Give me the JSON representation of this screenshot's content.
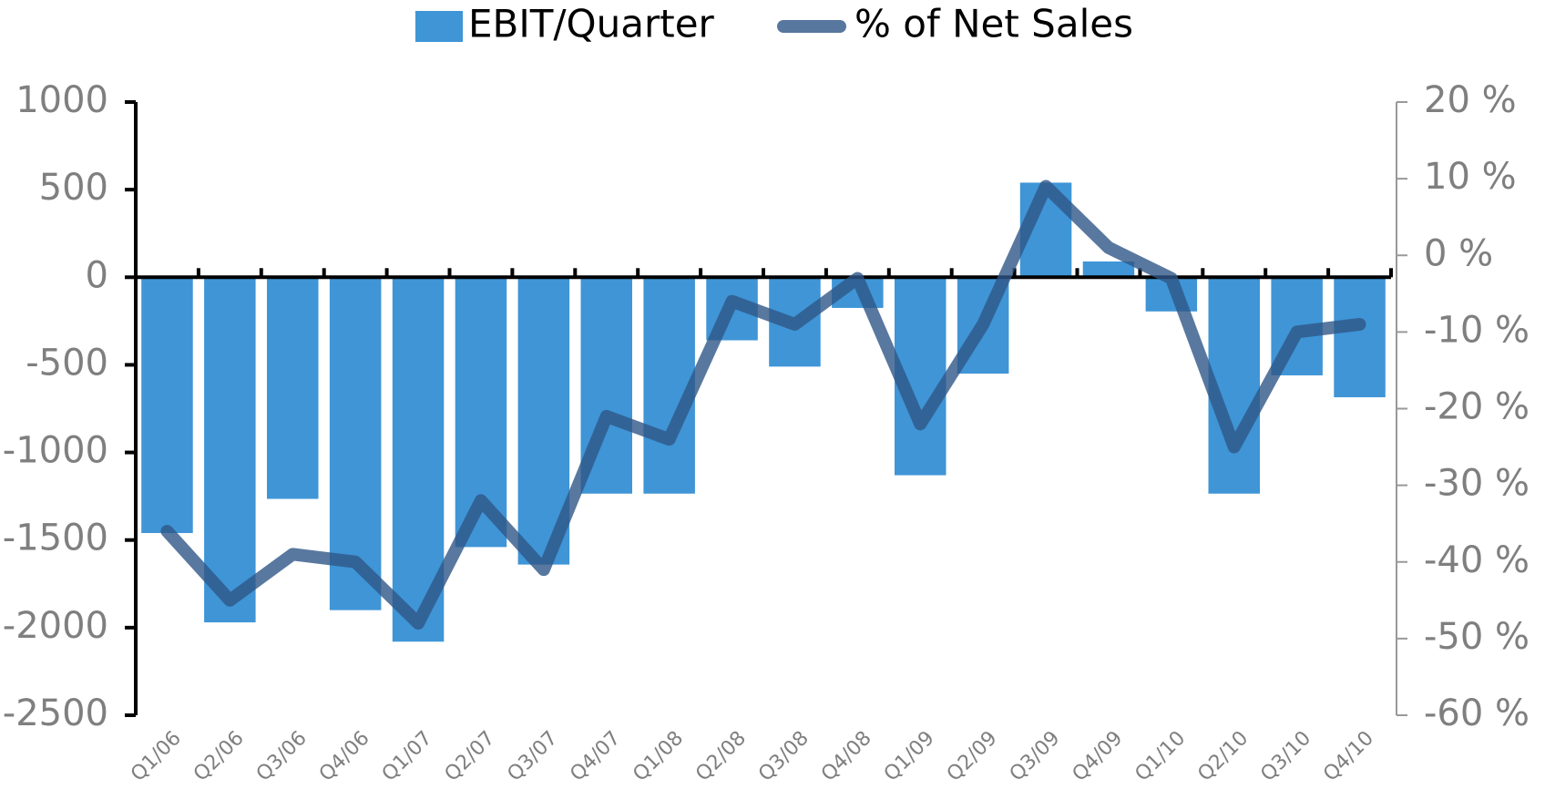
{
  "chart_data": {
    "type": "bar",
    "categories": [
      "Q1/06",
      "Q2/06",
      "Q3/06",
      "Q4/06",
      "Q1/07",
      "Q2/07",
      "Q3/07",
      "Q4/07",
      "Q1/08",
      "Q2/08",
      "Q3/08",
      "Q4/08",
      "Q1/09",
      "Q2/09",
      "Q3/09",
      "Q4/09",
      "Q1/10",
      "Q2/10",
      "Q3/10",
      "Q4/10"
    ],
    "series": [
      {
        "name": "EBIT/Quarter",
        "type": "bar",
        "color": "#3f95d6",
        "values": [
          -1460,
          -1970,
          -1265,
          -1900,
          -2080,
          -1540,
          -1640,
          -1235,
          -1235,
          -360,
          -510,
          -175,
          -1130,
          -550,
          540,
          90,
          -195,
          -1235,
          -560,
          -685
        ]
      },
      {
        "name": "% of Net Sales",
        "type": "line",
        "axis": "y2",
        "color": "#2f5687",
        "values": [
          -36,
          -45,
          -39,
          -40,
          -48,
          -32,
          -41,
          -21,
          -24,
          -6,
          -9,
          -3,
          -22,
          -9,
          9,
          1,
          -3,
          -25,
          -10,
          -9
        ]
      }
    ],
    "ylim": [
      -2500,
      1000
    ],
    "yticks": [
      -2500,
      -2000,
      -1500,
      -1000,
      -500,
      0,
      500,
      1000
    ],
    "y2lim": [
      -60,
      20
    ],
    "y2ticks": [
      {
        "value": -60,
        "label": "-60 %"
      },
      {
        "value": -50,
        "label": "-50 %"
      },
      {
        "value": -40,
        "label": "-40 %"
      },
      {
        "value": -30,
        "label": "-30 %"
      },
      {
        "value": -20,
        "label": "-20 %"
      },
      {
        "value": -10,
        "label": "-10 %"
      },
      {
        "value": 0,
        "label": "0 %"
      },
      {
        "value": 10,
        "label": "10 %"
      },
      {
        "value": 20,
        "label": "20 %"
      }
    ],
    "legend": "top"
  }
}
